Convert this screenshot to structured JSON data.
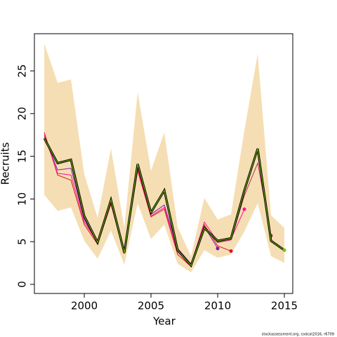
{
  "chart_data": {
    "type": "line",
    "xlabel": "Year",
    "ylabel": "Recruits",
    "footer": "stockassessment.org, codcat2016, r6709",
    "x": [
      1997,
      1998,
      1999,
      2000,
      2001,
      2002,
      2003,
      2004,
      2005,
      2006,
      2007,
      2008,
      2009,
      2010,
      2011,
      2012,
      2013,
      2014,
      2015
    ],
    "xlim": [
      1996.26,
      2015.63
    ],
    "xticks": [
      2000,
      2005,
      2010,
      2015
    ],
    "ylim": [
      -1.07,
      29.36
    ],
    "yticks": [
      0,
      5,
      10,
      15,
      20,
      25
    ],
    "band": {
      "color": "#f5deb3",
      "upper": [
        28.2,
        23.6,
        24.0,
        12.9,
        7.8,
        15.9,
        6.6,
        22.5,
        13.3,
        17.8,
        6.7,
        3.3,
        10.1,
        7.6,
        8.2,
        18.0,
        27.0,
        8.1,
        6.6
      ],
      "lower": [
        10.5,
        8.6,
        9.0,
        5.1,
        3.0,
        6.3,
        2.3,
        9.5,
        5.3,
        7.0,
        2.4,
        1.4,
        4.0,
        3.1,
        3.5,
        6.2,
        9.5,
        3.3,
        2.5
      ]
    },
    "series": [
      {
        "color": "#7a1fa2",
        "values": [
          17.3,
          13.4,
          13.6,
          7.6,
          4.8,
          9.7,
          3.6,
          13.8,
          8.2,
          9.3,
          4.2,
          2.4,
          6.8,
          4.2,
          null,
          null,
          null,
          null,
          null
        ]
      },
      {
        "color": "#e0102a",
        "values": [
          17.8,
          12.8,
          12.2,
          7.0,
          4.7,
          9.4,
          3.6,
          13.3,
          7.9,
          8.8,
          3.5,
          2.1,
          7.0,
          4.5,
          3.9,
          null,
          null,
          null,
          null
        ]
      },
      {
        "color": "#ff1493",
        "values": [
          17.5,
          13.0,
          12.8,
          7.3,
          4.9,
          9.6,
          3.7,
          13.5,
          8.0,
          9.0,
          3.8,
          2.3,
          7.3,
          5.0,
          5.3,
          8.8,
          null,
          null,
          null
        ]
      },
      {
        "color": "#b03060",
        "values": [
          17.0,
          14.1,
          14.5,
          7.9,
          4.9,
          9.8,
          3.7,
          14.0,
          8.3,
          10.9,
          3.9,
          2.1,
          6.6,
          4.9,
          5.2,
          10.4,
          14.2,
          5.7,
          null
        ]
      },
      {
        "color": "#000000",
        "highlight": "#7fbf00",
        "values": [
          17.1,
          14.2,
          14.6,
          8.0,
          4.9,
          9.9,
          3.7,
          14.1,
          8.4,
          11.0,
          4.0,
          2.2,
          6.6,
          5.1,
          5.4,
          11.0,
          15.9,
          5.1,
          4.0
        ]
      }
    ]
  }
}
